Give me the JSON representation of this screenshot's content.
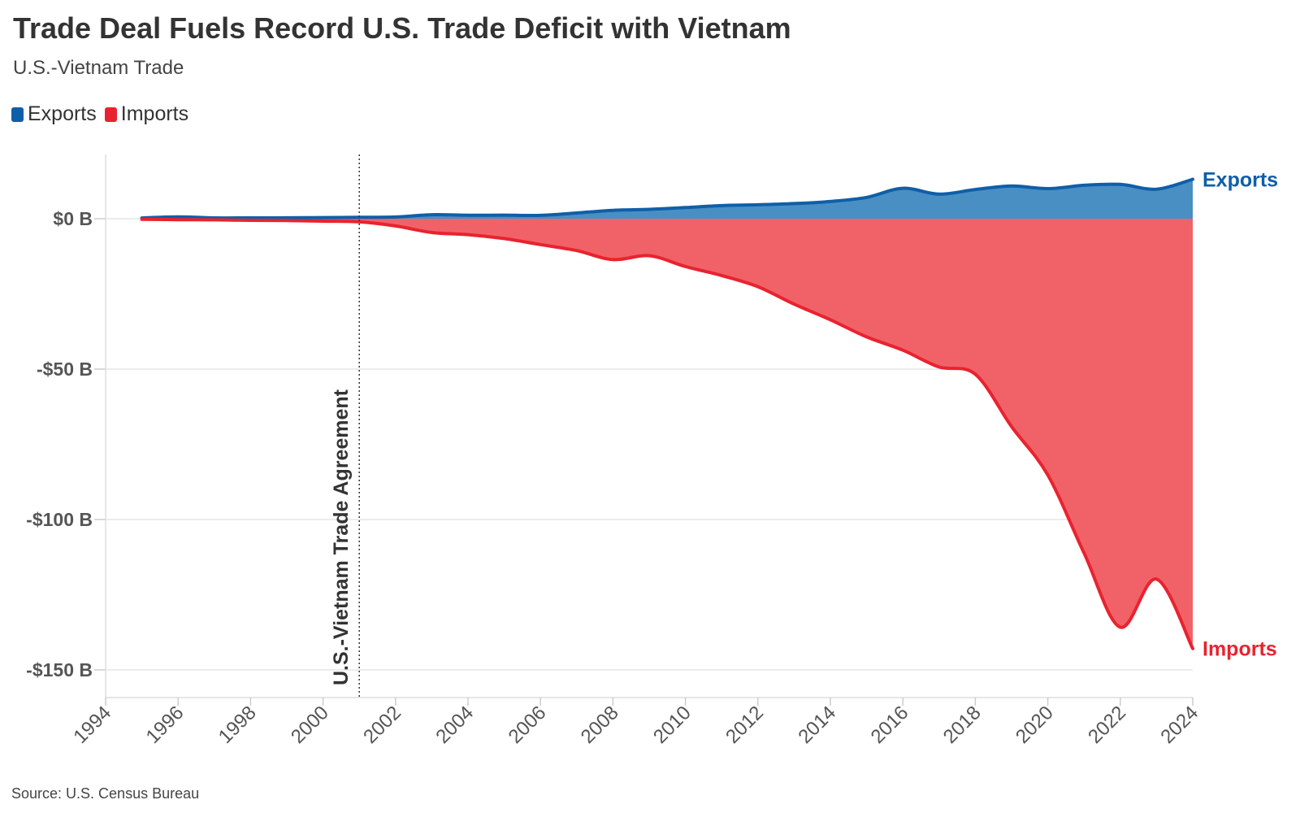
{
  "title": "Trade Deal Fuels Record U.S. Trade Deficit with Vietnam",
  "subtitle": "U.S.-Vietnam Trade",
  "source": "Source: U.S. Census Bureau",
  "legend": [
    {
      "label": "Exports",
      "color": "#0f5fa8"
    },
    {
      "label": "Imports",
      "color": "#e8232f"
    }
  ],
  "chart_data": {
    "type": "area",
    "x": [
      1995,
      1996,
      1997,
      1998,
      1999,
      2000,
      2001,
      2002,
      2003,
      2004,
      2005,
      2006,
      2007,
      2008,
      2009,
      2010,
      2011,
      2012,
      2013,
      2014,
      2015,
      2016,
      2017,
      2018,
      2019,
      2020,
      2021,
      2022,
      2023,
      2024
    ],
    "series": [
      {
        "name": "Exports",
        "color": "#0f5fa8",
        "fill": "#4a8fc4",
        "values": [
          0.25,
          0.62,
          0.28,
          0.27,
          0.29,
          0.37,
          0.46,
          0.58,
          1.32,
          1.16,
          1.19,
          1.1,
          1.9,
          2.79,
          3.11,
          3.71,
          4.34,
          4.62,
          5.02,
          5.73,
          7.07,
          10.12,
          8.17,
          9.71,
          10.88,
          10.0,
          11.1,
          11.4,
          9.8,
          13.1
        ]
      },
      {
        "name": "Imports",
        "color": "#e8232f",
        "fill": "#f06268",
        "values": [
          -0.2,
          -0.32,
          -0.39,
          -0.55,
          -0.61,
          -0.82,
          -1.05,
          -2.4,
          -4.6,
          -5.3,
          -6.6,
          -8.6,
          -10.6,
          -13.6,
          -12.3,
          -15.9,
          -18.9,
          -22.6,
          -28.4,
          -33.6,
          -39.3,
          -43.7,
          -49.3,
          -51.7,
          -69.1,
          -85.2,
          -111.1,
          -135.8,
          -119.8,
          -142.9
        ]
      }
    ],
    "annotation": {
      "x": 2001,
      "label": "U.S.-Vietnam Trade Agreement"
    },
    "end_labels": [
      "Exports",
      "Imports"
    ],
    "xlim": [
      1994,
      2024
    ],
    "ylim": [
      -160,
      20
    ],
    "x_ticks": [
      "1994",
      "1996",
      "1998",
      "2000",
      "2002",
      "2004",
      "2006",
      "2008",
      "2010",
      "2012",
      "2014",
      "2016",
      "2018",
      "2020",
      "2022",
      "2024"
    ],
    "y_ticks": [
      {
        "value": 0,
        "label": "$0 B"
      },
      {
        "value": -50,
        "label": "-$50 B"
      },
      {
        "value": -100,
        "label": "-$100 B"
      },
      {
        "value": -150,
        "label": "-$150 B"
      }
    ],
    "grid": true
  }
}
